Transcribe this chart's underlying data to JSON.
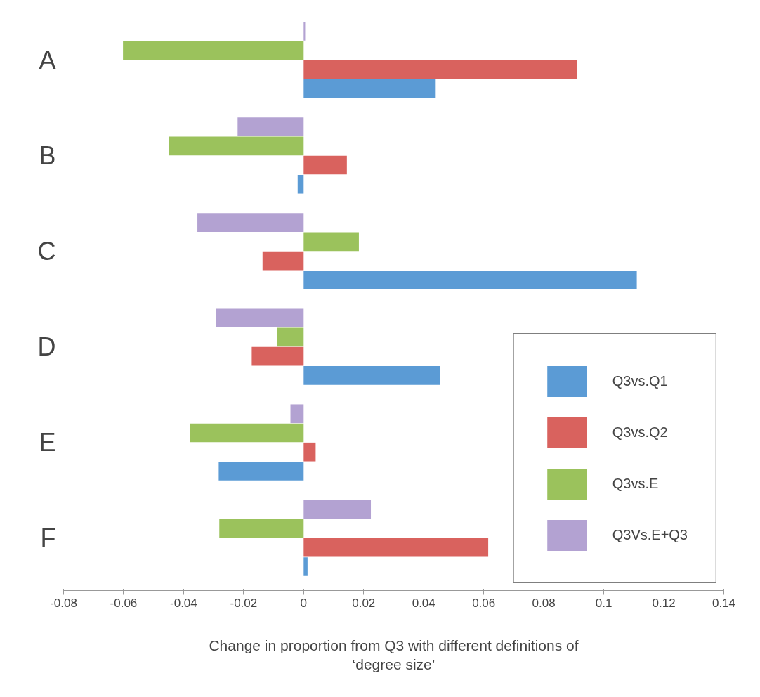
{
  "chart_data": {
    "type": "bar",
    "orientation": "horizontal",
    "categories": [
      "A",
      "B",
      "C",
      "D",
      "E",
      "F"
    ],
    "series": [
      {
        "name": "Q3vs.Q1",
        "color": "#5b9bd5",
        "values": [
          0.044,
          -0.002,
          0.111,
          0.0454,
          -0.0283,
          0.0013
        ]
      },
      {
        "name": "Q3vs.Q2",
        "color": "#d9625e",
        "values": [
          0.091,
          0.0144,
          -0.0137,
          -0.0173,
          0.004,
          0.0615
        ]
      },
      {
        "name": "Q3vs.E",
        "color": "#9bc25c",
        "values": [
          -0.0602,
          -0.045,
          0.0184,
          -0.0089,
          -0.0379,
          -0.0281
        ]
      },
      {
        "name": "Q3Vs.E+Q3",
        "color": "#b3a2d2",
        "values": [
          0.0005,
          -0.022,
          -0.0354,
          -0.0292,
          -0.0044,
          0.0224
        ]
      }
    ],
    "xlim": [
      -0.08,
      0.14
    ],
    "xticks": [
      -0.08,
      -0.06,
      -0.04,
      -0.02,
      0,
      0.02,
      0.04,
      0.06,
      0.08,
      0.1,
      0.12,
      0.14
    ],
    "xlabel": "Change in proportion from Q3 with different definitions of\n‘degree size’",
    "legend": "bottom right",
    "grid": false
  }
}
